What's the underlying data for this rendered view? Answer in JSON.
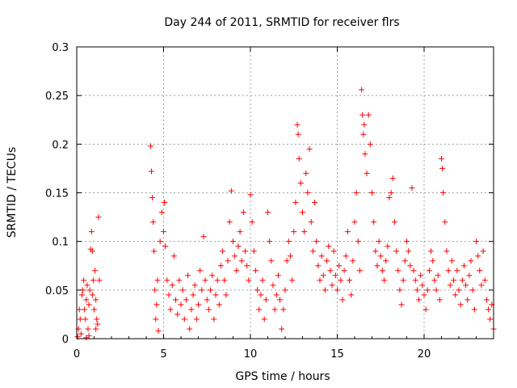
{
  "chart_data": {
    "type": "scatter",
    "title": "Day 244 of 2011, SRMTID for receiver flrs",
    "xlabel": "GPS time / hours",
    "ylabel": "SRMTID / TECUs",
    "xlim": [
      0,
      24
    ],
    "ylim": [
      0,
      0.3
    ],
    "xticks": [
      0,
      5,
      10,
      15,
      20
    ],
    "xtick_labels": [
      "0",
      "5",
      "10",
      "15",
      "20"
    ],
    "yticks": [
      0,
      0.05,
      0.1,
      0.15,
      0.2,
      0.25,
      0.3
    ],
    "ytick_labels": [
      "0",
      "0.05",
      "0.1",
      "0.15",
      "0.2",
      "0.25",
      "0.3"
    ],
    "grid": true,
    "marker": "+",
    "color": "#ff0000",
    "series": [
      {
        "name": "SRMTID",
        "points": [
          [
            0.05,
            0.002
          ],
          [
            0.1,
            0.01
          ],
          [
            0.15,
            0.03
          ],
          [
            0.2,
            0.02
          ],
          [
            0.25,
            0.005
          ],
          [
            0.3,
            0.045
          ],
          [
            0.35,
            0.05
          ],
          [
            0.4,
            0.06
          ],
          [
            0.45,
            0.03
          ],
          [
            0.5,
            0.02
          ],
          [
            0.55,
            0.04
          ],
          [
            0.6,
            0.055
          ],
          [
            0.65,
            0.01
          ],
          [
            0.7,
            0.035
          ],
          [
            0.75,
            0.05
          ],
          [
            0.8,
            0.092
          ],
          [
            0.85,
            0.11
          ],
          [
            0.9,
            0.09
          ],
          [
            0.95,
            0.06
          ],
          [
            1.0,
            0.03
          ],
          [
            1.05,
            0.07
          ],
          [
            1.1,
            0.04
          ],
          [
            1.15,
            0.02
          ],
          [
            1.2,
            0.015
          ],
          [
            1.25,
            0.125
          ],
          [
            1.3,
            0.06
          ],
          [
            0.55,
            0.001
          ],
          [
            0.7,
            0.003
          ],
          [
            1.1,
            0.01
          ],
          [
            0.9,
            0.045
          ],
          [
            4.25,
            0.198
          ],
          [
            4.3,
            0.172
          ],
          [
            4.35,
            0.145
          ],
          [
            4.4,
            0.12
          ],
          [
            4.45,
            0.09
          ],
          [
            4.5,
            0.05
          ],
          [
            4.55,
            0.02
          ],
          [
            4.6,
            0.035
          ],
          [
            4.65,
            0.06
          ],
          [
            4.7,
            0.008
          ],
          [
            4.8,
            0.1
          ],
          [
            4.9,
            0.13
          ],
          [
            5.0,
            0.11
          ],
          [
            5.05,
            0.14
          ],
          [
            5.1,
            0.095
          ],
          [
            5.2,
            0.06
          ],
          [
            5.3,
            0.045
          ],
          [
            5.4,
            0.03
          ],
          [
            5.5,
            0.055
          ],
          [
            5.6,
            0.085
          ],
          [
            5.7,
            0.04
          ],
          [
            5.8,
            0.025
          ],
          [
            5.9,
            0.06
          ],
          [
            6.0,
            0.035
          ],
          [
            6.1,
            0.05
          ],
          [
            6.2,
            0.02
          ],
          [
            6.3,
            0.04
          ],
          [
            6.4,
            0.065
          ],
          [
            6.5,
            0.01
          ],
          [
            6.6,
            0.03
          ],
          [
            6.7,
            0.045
          ],
          [
            6.8,
            0.055
          ],
          [
            6.9,
            0.02
          ],
          [
            7.0,
            0.035
          ],
          [
            7.1,
            0.07
          ],
          [
            7.2,
            0.05
          ],
          [
            7.3,
            0.105
          ],
          [
            7.4,
            0.06
          ],
          [
            7.5,
            0.04
          ],
          [
            7.6,
            0.03
          ],
          [
            7.7,
            0.05
          ],
          [
            7.8,
            0.065
          ],
          [
            7.9,
            0.02
          ],
          [
            8.0,
            0.045
          ],
          [
            8.1,
            0.06
          ],
          [
            8.2,
            0.035
          ],
          [
            8.3,
            0.075
          ],
          [
            8.4,
            0.09
          ],
          [
            8.5,
            0.06
          ],
          [
            8.6,
            0.045
          ],
          [
            8.7,
            0.08
          ],
          [
            8.8,
            0.12
          ],
          [
            8.9,
            0.152
          ],
          [
            9.0,
            0.1
          ],
          [
            9.1,
            0.085
          ],
          [
            9.2,
            0.07
          ],
          [
            9.3,
            0.095
          ],
          [
            9.4,
            0.11
          ],
          [
            9.5,
            0.08
          ],
          [
            9.6,
            0.13
          ],
          [
            9.7,
            0.09
          ],
          [
            9.8,
            0.075
          ],
          [
            9.9,
            0.06
          ],
          [
            10.0,
            0.148
          ],
          [
            10.1,
            0.12
          ],
          [
            10.2,
            0.09
          ],
          [
            10.3,
            0.07
          ],
          [
            10.4,
            0.05
          ],
          [
            10.5,
            0.03
          ],
          [
            10.6,
            0.045
          ],
          [
            10.7,
            0.06
          ],
          [
            10.8,
            0.02
          ],
          [
            10.9,
            0.04
          ],
          [
            11.0,
            0.13
          ],
          [
            11.1,
            0.1
          ],
          [
            11.2,
            0.08
          ],
          [
            11.3,
            0.055
          ],
          [
            11.4,
            0.03
          ],
          [
            11.5,
            0.045
          ],
          [
            11.6,
            0.065
          ],
          [
            11.7,
            0.04
          ],
          [
            11.8,
            0.01
          ],
          [
            11.9,
            0.03
          ],
          [
            12.0,
            0.05
          ],
          [
            12.1,
            0.08
          ],
          [
            12.2,
            0.1
          ],
          [
            12.3,
            0.085
          ],
          [
            12.4,
            0.06
          ],
          [
            12.5,
            0.11
          ],
          [
            12.6,
            0.14
          ],
          [
            12.7,
            0.22
          ],
          [
            12.75,
            0.21
          ],
          [
            12.8,
            0.185
          ],
          [
            12.9,
            0.16
          ],
          [
            13.0,
            0.13
          ],
          [
            13.1,
            0.11
          ],
          [
            13.2,
            0.17
          ],
          [
            13.3,
            0.15
          ],
          [
            13.4,
            0.195
          ],
          [
            13.5,
            0.12
          ],
          [
            13.6,
            0.09
          ],
          [
            13.7,
            0.14
          ],
          [
            13.8,
            0.1
          ],
          [
            13.9,
            0.075
          ],
          [
            14.0,
            0.06
          ],
          [
            14.1,
            0.085
          ],
          [
            14.2,
            0.065
          ],
          [
            14.3,
            0.05
          ],
          [
            14.4,
            0.08
          ],
          [
            14.5,
            0.095
          ],
          [
            14.6,
            0.07
          ],
          [
            14.7,
            0.055
          ],
          [
            14.8,
            0.09
          ],
          [
            14.9,
            0.065
          ],
          [
            15.0,
            0.05
          ],
          [
            15.1,
            0.075
          ],
          [
            15.2,
            0.06
          ],
          [
            15.3,
            0.04
          ],
          [
            15.4,
            0.07
          ],
          [
            15.5,
            0.085
          ],
          [
            15.6,
            0.11
          ],
          [
            15.7,
            0.06
          ],
          [
            15.8,
            0.045
          ],
          [
            15.9,
            0.08
          ],
          [
            16.0,
            0.12
          ],
          [
            16.1,
            0.15
          ],
          [
            16.2,
            0.1
          ],
          [
            16.3,
            0.07
          ],
          [
            16.4,
            0.256
          ],
          [
            16.45,
            0.23
          ],
          [
            16.5,
            0.21
          ],
          [
            16.55,
            0.22
          ],
          [
            16.6,
            0.19
          ],
          [
            16.7,
            0.17
          ],
          [
            16.8,
            0.23
          ],
          [
            16.9,
            0.2
          ],
          [
            17.0,
            0.15
          ],
          [
            17.1,
            0.12
          ],
          [
            17.2,
            0.09
          ],
          [
            17.3,
            0.075
          ],
          [
            17.4,
            0.1
          ],
          [
            17.5,
            0.085
          ],
          [
            17.6,
            0.07
          ],
          [
            17.7,
            0.06
          ],
          [
            17.8,
            0.08
          ],
          [
            17.9,
            0.095
          ],
          [
            18.0,
            0.145
          ],
          [
            18.1,
            0.15
          ],
          [
            18.2,
            0.165
          ],
          [
            18.3,
            0.12
          ],
          [
            18.4,
            0.09
          ],
          [
            18.5,
            0.07
          ],
          [
            18.6,
            0.05
          ],
          [
            18.7,
            0.035
          ],
          [
            18.8,
            0.06
          ],
          [
            18.9,
            0.08
          ],
          [
            19.0,
            0.1
          ],
          [
            19.1,
            0.09
          ],
          [
            19.2,
            0.075
          ],
          [
            19.3,
            0.155
          ],
          [
            19.4,
            0.07
          ],
          [
            19.5,
            0.06
          ],
          [
            19.6,
            0.05
          ],
          [
            19.7,
            0.04
          ],
          [
            19.8,
            0.065
          ],
          [
            19.9,
            0.055
          ],
          [
            20.0,
            0.045
          ],
          [
            20.1,
            0.03
          ],
          [
            20.2,
            0.05
          ],
          [
            20.3,
            0.07
          ],
          [
            20.4,
            0.09
          ],
          [
            20.5,
            0.08
          ],
          [
            20.6,
            0.06
          ],
          [
            20.7,
            0.05
          ],
          [
            20.8,
            0.065
          ],
          [
            20.9,
            0.04
          ],
          [
            21.0,
            0.185
          ],
          [
            21.05,
            0.175
          ],
          [
            21.1,
            0.15
          ],
          [
            21.2,
            0.12
          ],
          [
            21.3,
            0.09
          ],
          [
            21.4,
            0.07
          ],
          [
            21.5,
            0.055
          ],
          [
            21.6,
            0.08
          ],
          [
            21.7,
            0.06
          ],
          [
            21.8,
            0.045
          ],
          [
            21.9,
            0.07
          ],
          [
            22.0,
            0.05
          ],
          [
            22.1,
            0.035
          ],
          [
            22.2,
            0.06
          ],
          [
            22.3,
            0.075
          ],
          [
            22.4,
            0.055
          ],
          [
            22.5,
            0.04
          ],
          [
            22.6,
            0.065
          ],
          [
            22.7,
            0.08
          ],
          [
            22.8,
            0.05
          ],
          [
            22.9,
            0.03
          ],
          [
            23.0,
            0.1
          ],
          [
            23.1,
            0.085
          ],
          [
            23.2,
            0.07
          ],
          [
            23.3,
            0.055
          ],
          [
            23.4,
            0.09
          ],
          [
            23.5,
            0.06
          ],
          [
            23.6,
            0.04
          ],
          [
            23.7,
            0.03
          ],
          [
            23.8,
            0.02
          ],
          [
            23.9,
            0.035
          ],
          [
            24.0,
            0.01
          ]
        ]
      }
    ]
  }
}
